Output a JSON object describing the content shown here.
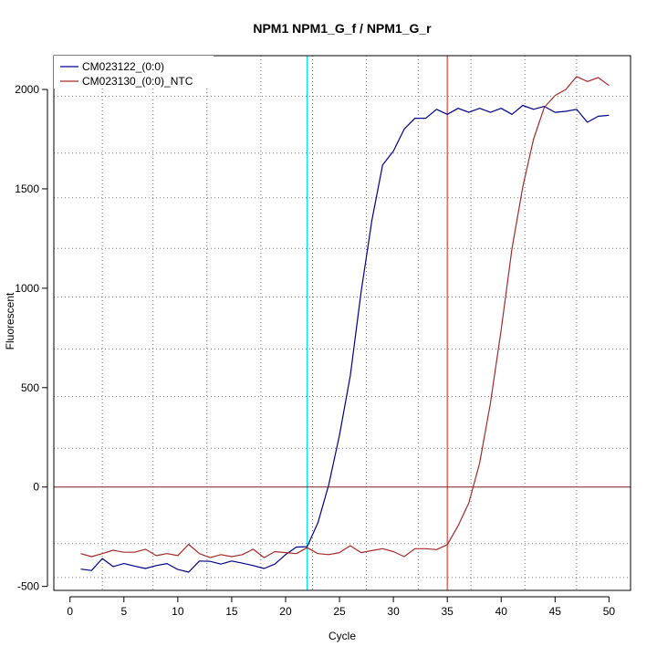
{
  "chart_data": {
    "type": "line",
    "title": "NPM1  NPM1_G_f / NPM1_G_r",
    "xlabel": "Cycle",
    "ylabel": "Fluorescent",
    "xlim": [
      -1.5,
      52
    ],
    "ylim": [
      -520,
      2170
    ],
    "xticks": [
      0,
      5,
      10,
      15,
      20,
      25,
      30,
      35,
      40,
      45,
      50
    ],
    "yticks": [
      -500,
      0,
      500,
      1000,
      1500,
      2000
    ],
    "grid": true,
    "legend": "top-left",
    "x": [
      1,
      2,
      3,
      4,
      5,
      6,
      7,
      8,
      9,
      10,
      11,
      12,
      13,
      14,
      15,
      16,
      17,
      18,
      19,
      20,
      21,
      22,
      23,
      24,
      25,
      26,
      27,
      28,
      29,
      30,
      31,
      32,
      33,
      34,
      35,
      36,
      37,
      38,
      39,
      40,
      41,
      42,
      43,
      44,
      45,
      46,
      47,
      48,
      49,
      50
    ],
    "series": [
      {
        "name": "CM023122_(0:0)",
        "color": "#00008b",
        "values": [
          -413,
          -420,
          -360,
          -400,
          -385,
          -398,
          -410,
          -395,
          -385,
          -415,
          -428,
          -372,
          -374,
          -388,
          -372,
          -383,
          -395,
          -410,
          -388,
          -340,
          -302,
          -300,
          -180,
          10,
          260,
          560,
          980,
          1340,
          1620,
          1690,
          1800,
          1855,
          1855,
          1900,
          1875,
          1905,
          1885,
          1905,
          1885,
          1905,
          1875,
          1920,
          1900,
          1915,
          1885,
          1890,
          1900,
          1835,
          1865,
          1870
        ]
      },
      {
        "name": "CM023130_(0:0)_NTC",
        "color": "#a52a2a",
        "values": [
          -335,
          -350,
          -335,
          -318,
          -328,
          -328,
          -313,
          -345,
          -335,
          -345,
          -288,
          -335,
          -355,
          -340,
          -350,
          -340,
          -313,
          -355,
          -325,
          -330,
          -335,
          -305,
          -335,
          -340,
          -330,
          -295,
          -330,
          -320,
          -310,
          -325,
          -350,
          -310,
          -310,
          -315,
          -290,
          -195,
          -80,
          120,
          420,
          790,
          1200,
          1510,
          1750,
          1910,
          1970,
          2000,
          2065,
          2040,
          2060,
          2020
        ]
      }
    ],
    "threshold_y": 0,
    "markers": [
      {
        "x": 22,
        "color": "#00e5ee"
      },
      {
        "x": 35,
        "color": "#e34234"
      }
    ],
    "grid_x": [
      3,
      7.7,
      12.7,
      17.7,
      22.5,
      27.5,
      32.3,
      37.2,
      42.2,
      47
    ],
    "grid_y": [
      -455,
      -285,
      195,
      455,
      695,
      955,
      1200,
      1455,
      1680,
      1965
    ]
  }
}
